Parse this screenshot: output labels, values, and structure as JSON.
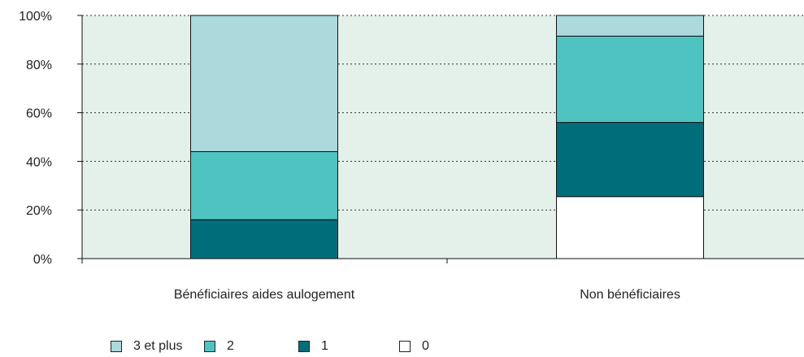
{
  "chart_data": {
    "type": "bar",
    "stacked": true,
    "categories": [
      "Bénéficiaires aides aulogement",
      "Non bénéficiaires"
    ],
    "series": [
      {
        "name": "0",
        "color": "#ffffff",
        "values": [
          0,
          25.5
        ]
      },
      {
        "name": "1",
        "color": "#006e7a",
        "values": [
          16,
          30.5
        ]
      },
      {
        "name": "2",
        "color": "#4fc3c1",
        "values": [
          28,
          35.5
        ]
      },
      {
        "name": "3 et plus",
        "color": "#acdadc",
        "values": [
          56,
          8.5
        ]
      }
    ],
    "ylim": [
      0,
      100
    ],
    "yticks": [
      "0%",
      "20%",
      "40%",
      "60%",
      "80%",
      "100%"
    ],
    "ytick_values": [
      0,
      20,
      40,
      60,
      80,
      100
    ],
    "grid": true,
    "plot_background": "#e3f1ea",
    "legend_placement": "bottom-left",
    "legend": [
      {
        "label": "3 et plus",
        "color": "#acdadc"
      },
      {
        "label": "2",
        "color": "#4fc3c1"
      },
      {
        "label": "1",
        "color": "#006e7a"
      },
      {
        "label": "0",
        "color": "#ffffff"
      }
    ]
  }
}
